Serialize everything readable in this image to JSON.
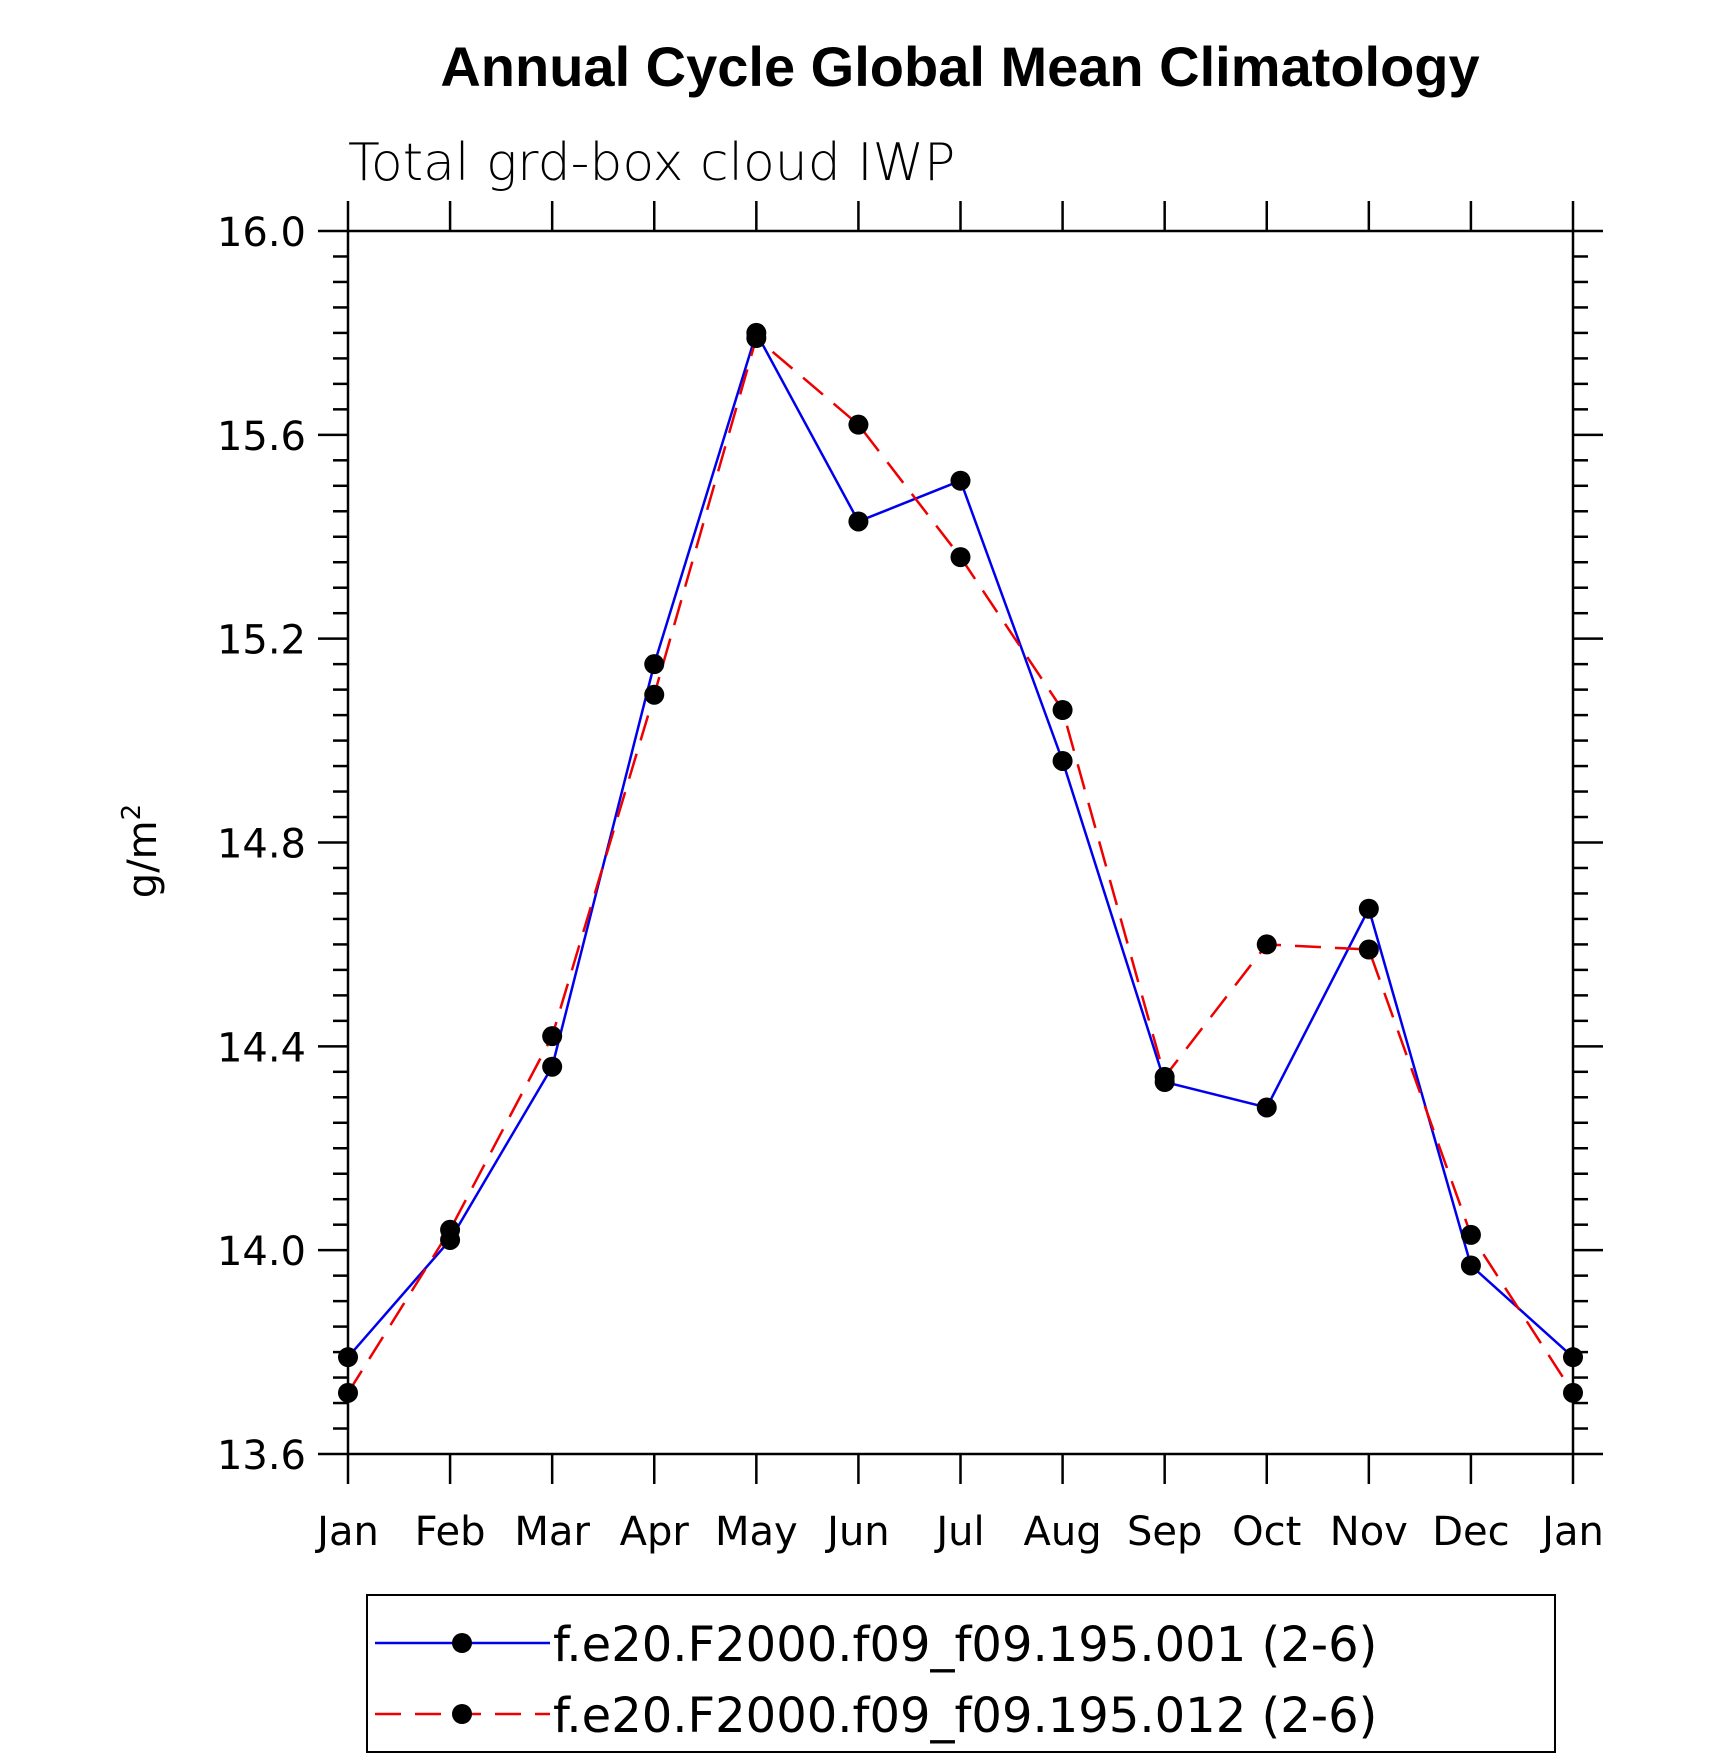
{
  "chart_data": {
    "type": "line",
    "title": "Annual Cycle Global Mean Climatology",
    "subtitle": "Total grd-box cloud IWP",
    "ylabel_base": "g/m",
    "ylabel_sup": "2",
    "ylim": [
      13.6,
      16.0
    ],
    "yticks": [
      "13.6",
      "14.0",
      "14.4",
      "14.8",
      "15.2",
      "15.6",
      "16.0"
    ],
    "categories": [
      "Jan",
      "Feb",
      "Mar",
      "Apr",
      "May",
      "Jun",
      "Jul",
      "Aug",
      "Sep",
      "Oct",
      "Nov",
      "Dec",
      "Jan"
    ],
    "series": [
      {
        "name": "f.e20.F2000.f09_f09.195.001 (2-6)",
        "color": "#0000ee",
        "dash": "solid",
        "values": [
          13.79,
          14.02,
          14.36,
          15.15,
          15.8,
          15.43,
          15.51,
          14.96,
          14.33,
          14.28,
          14.67,
          13.97,
          13.79
        ]
      },
      {
        "name": "f.e20.F2000.f09_f09.195.012 (2-6)",
        "color": "#ee0000",
        "dash": "dashed",
        "values": [
          13.72,
          14.04,
          14.42,
          15.09,
          15.79,
          15.62,
          15.36,
          15.06,
          14.34,
          14.6,
          14.59,
          14.03,
          13.72
        ]
      }
    ]
  }
}
